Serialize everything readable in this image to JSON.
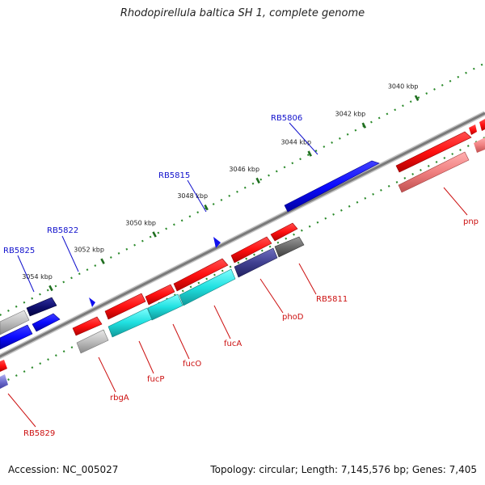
{
  "title": "Rhodopirellula baltica SH 1, complete genome",
  "footer": {
    "accession": "Accession: NC_005027",
    "topology": "Topology: circular; Length: 7,145,576 bp; Genes: 7,405"
  },
  "ticks": [
    {
      "label": "3040 kbp",
      "t": 0.862
    },
    {
      "label": "3042 kbp",
      "t": 0.755
    },
    {
      "label": "3044 kbp",
      "t": 0.645
    },
    {
      "label": "3046 kbp",
      "t": 0.54
    },
    {
      "label": "3048 kbp",
      "t": 0.435
    },
    {
      "label": "3050 kbp",
      "t": 0.33
    },
    {
      "label": "3052 kbp",
      "t": 0.225
    },
    {
      "label": "3054 kbp",
      "t": 0.12
    }
  ],
  "genes_top": [
    {
      "label": "RB5806",
      "color": "#1010cc"
    },
    {
      "label": "RB5815",
      "color": "#1010cc"
    },
    {
      "label": "RB5822",
      "color": "#1010cc"
    },
    {
      "label": "RB5825",
      "color": "#1010cc"
    }
  ],
  "genes_bottom": [
    {
      "label": "pnp",
      "color": "#cc1010"
    },
    {
      "label": "RB5811",
      "color": "#cc1010"
    },
    {
      "label": "phoD",
      "color": "#cc1010"
    },
    {
      "label": "fucA",
      "color": "#cc1010"
    },
    {
      "label": "fucO",
      "color": "#cc1010"
    },
    {
      "label": "fucP",
      "color": "#cc1010"
    },
    {
      "label": "rbgA",
      "color": "#cc1010"
    },
    {
      "label": "RB5829",
      "color": "#cc1010"
    }
  ]
}
